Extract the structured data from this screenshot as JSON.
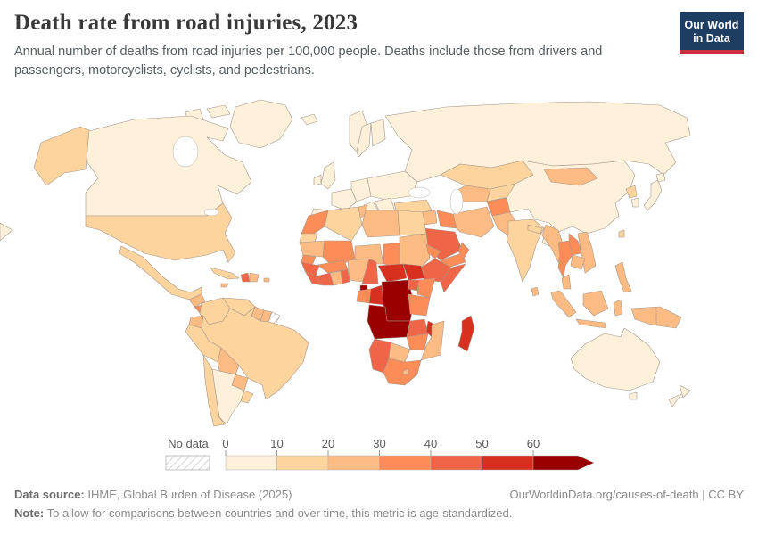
{
  "header": {
    "title": "Death rate from road injuries, 2023",
    "subtitle": "Annual number of deaths from road injuries per 100,000 people. Deaths include those from drivers and passengers, motorcyclists, cyclists, and pedestrians.",
    "logo": {
      "line1": "Our World",
      "line2": "in Data",
      "bg_color": "#1d3d63",
      "accent_color": "#cc2d3f"
    }
  },
  "chart_data": {
    "type": "choropleth-map",
    "title": "Death rate from road injuries, 2023",
    "unit": "deaths from road injuries per 100,000 people",
    "year": "2023",
    "legend": {
      "no_data_label": "No data",
      "ticks": [
        "0",
        "10",
        "20",
        "30",
        "40",
        "50",
        "60"
      ],
      "bins": [
        {
          "range": "0-10",
          "color": "#fef0d9"
        },
        {
          "range": "10-20",
          "color": "#fdd49e"
        },
        {
          "range": "20-30",
          "color": "#fdbb84"
        },
        {
          "range": "30-40",
          "color": "#fc8d59"
        },
        {
          "range": "40-50",
          "color": "#ef6548"
        },
        {
          "range": "50-60",
          "color": "#d7301f"
        },
        {
          "range": "60+",
          "color": "#990000"
        }
      ]
    },
    "countries": {
      "greenland": 0,
      "canada": 0,
      "canada-island-west": 0,
      "canada-island-east": 0,
      "alaska": 1,
      "usa": 1,
      "mexico": 1,
      "guatemala": 2,
      "honduras-nicaragua": 3,
      "costa-rica-panama": 2,
      "cuba": 1,
      "jamaica": 2,
      "haiti": 4,
      "dominican-republic": 2,
      "puerto-rico": 2,
      "colombia": 1,
      "venezuela": 1,
      "guyana": 2,
      "suriname": 2,
      "french-guiana": -1,
      "ecuador": 2,
      "peru": 1,
      "brazil": 1,
      "bolivia": 2,
      "paraguay": 2,
      "chile": 1,
      "argentina": 0,
      "uruguay": 1,
      "iceland": 0,
      "norway": 0,
      "sweden": 0,
      "finland": 0,
      "uk": 0,
      "ireland": 0,
      "france": 0,
      "iberia": 0,
      "germany-central": 0,
      "italy": 0,
      "eastern-europe": 0,
      "balkans": 0,
      "turkey": 1,
      "russia": 0,
      "chukotka-fragment": 0,
      "kazakhstan": 1,
      "uzbekistan-turkmenistan": 2,
      "kyrgyzstan-tajikistan": 1,
      "syria-levant": 2,
      "iraq": 3,
      "iran": 2,
      "saudi-arabia": 4,
      "yemen": 3,
      "oman": 3,
      "afghanistan": 3,
      "pakistan": 2,
      "india": 1,
      "nepal": 1,
      "bangladesh": 0,
      "sri-lanka": 2,
      "china": 0,
      "mongolia": 2,
      "north-korea": 1,
      "south-korea": 0,
      "japan": 0,
      "hokkaido": 0,
      "taiwan": 1,
      "myanmar": 2,
      "thailand": 3,
      "laos": 3,
      "vietnam": 2,
      "cambodia": 2,
      "malaysia": 2,
      "sumatra": 2,
      "java": 2,
      "borneo": 2,
      "sulawesi": 2,
      "philippines": 2,
      "new-guinea": 2,
      "australia": 0,
      "tasmania": 0,
      "new-zealand-north": 0,
      "new-zealand-south": 0,
      "morocco": 3,
      "western-sahara": 1,
      "algeria": 1,
      "tunisia": 2,
      "libya": 2,
      "egypt": 1,
      "mauritania": 2,
      "mali": 3,
      "niger": 2,
      "chad": 3,
      "sudan": 2,
      "eritrea": 3,
      "ethiopia": 4,
      "somalia": 4,
      "senegal": 3,
      "guinea": 4,
      "sierra-leone": 4,
      "cote-divoire": 4,
      "ghana": 2,
      "togo-benin": 4,
      "burkina-faso": 3,
      "nigeria": 2,
      "cameroon": 4,
      "central-african-republic": 5,
      "south-sudan": 5,
      "equatorial-guinea": 6,
      "gabon": 3,
      "congo": 5,
      "drc": 6,
      "uganda": 4,
      "kenya": 3,
      "tanzania": 3,
      "angola": 6,
      "zambia": 4,
      "malawi": 5,
      "mozambique": 2,
      "zimbabwe": 3,
      "botswana": 2,
      "namibia": 4,
      "south-africa": 3,
      "lesotho": 2,
      "madagascar": 5
    }
  },
  "footer": {
    "source_label": "Data source:",
    "source_text": " IHME, Global Burden of Disease (2025)",
    "credit": "OurWorldinData.org/causes-of-death | CC BY",
    "note_label": "Note:",
    "note_text": " To allow for comparisons between countries and over time, this metric is age-standardized."
  }
}
